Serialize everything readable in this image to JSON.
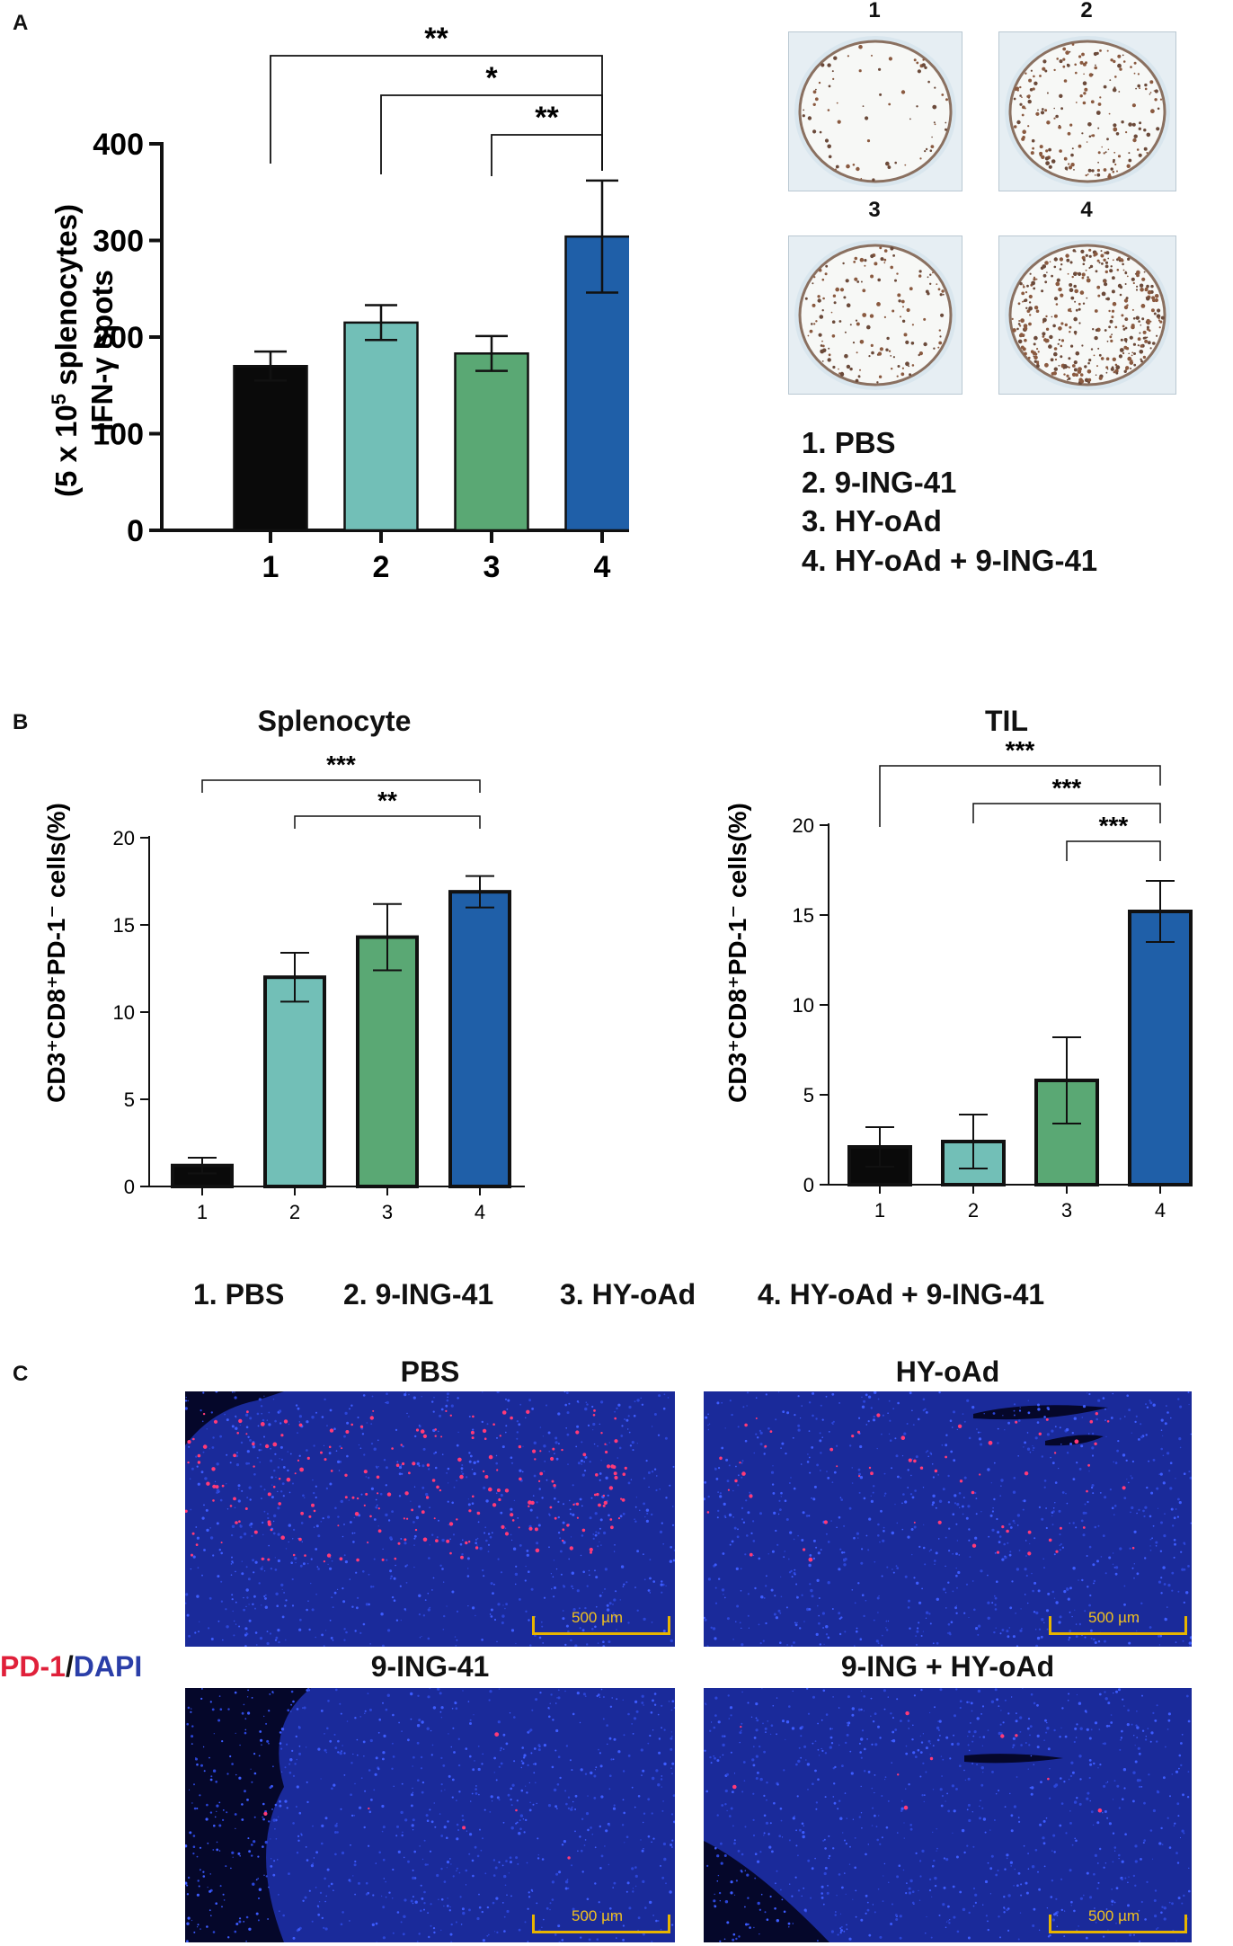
{
  "panel_letters": {
    "a": "A",
    "b": "B",
    "c": "C"
  },
  "panel_a": {
    "wells": [
      {
        "label": "1"
      },
      {
        "label": "2"
      },
      {
        "label": "3"
      },
      {
        "label": "4"
      }
    ],
    "legend": [
      "1. PBS",
      "2. 9-ING-41",
      "3. HY-oAd",
      "4. HY-oAd  + 9-ING-41"
    ]
  },
  "panel_b": {
    "legend": [
      "1. PBS",
      "2. 9-ING-41",
      "3. HY-oAd",
      "4. HY-oAd + 9-ING-41"
    ]
  },
  "panel_c": {
    "titles": [
      "PBS",
      "HY-oAd",
      "9-ING-41",
      "9-ING + HY-oAd"
    ],
    "stain_pd1": "PD-1",
    "stain_sep": "/",
    "stain_dapi": "DAPI",
    "scalebar": "500 µm",
    "stain_colors": {
      "pd1": "#e0203a",
      "dapi": "#2a3ea8"
    }
  },
  "chart_data": [
    {
      "type": "bar",
      "title": "",
      "ylabel_line1": "IFN-γ spots",
      "ylabel_line2_pre": "(5 x 10",
      "ylabel_line2_sup": "5",
      "ylabel_line2_post": " splenocytes)",
      "categories": [
        "1",
        "2",
        "3",
        "4"
      ],
      "values": [
        170,
        215,
        183,
        304
      ],
      "errors": [
        15,
        18,
        18,
        58
      ],
      "colors": [
        "#0a0a0a",
        "#72bfb7",
        "#5aa874",
        "#1f5fa8"
      ],
      "ylim": [
        0,
        400
      ],
      "yticks": [
        0,
        100,
        200,
        300,
        400
      ],
      "significance": [
        {
          "from": 1,
          "to": 4,
          "label": "**"
        },
        {
          "from": 2,
          "to": 4,
          "label": "*"
        },
        {
          "from": 3,
          "to": 4,
          "label": "**"
        }
      ]
    },
    {
      "type": "bar",
      "title": "Splenocyte",
      "ylabel": "CD3⁺CD8⁺PD-1⁻ cells(%)",
      "categories": [
        "1",
        "2",
        "3",
        "4"
      ],
      "values": [
        1.2,
        12.0,
        14.3,
        16.9
      ],
      "errors": [
        0.45,
        1.4,
        1.9,
        0.9
      ],
      "colors": [
        "#0a0a0a",
        "#72bfb7",
        "#5aa874",
        "#1f5fa8"
      ],
      "ylim": [
        0,
        20
      ],
      "yticks": [
        0,
        5,
        10,
        15,
        20
      ],
      "significance": [
        {
          "from": 1,
          "to": 4,
          "label": "***"
        },
        {
          "from": 2,
          "to": 4,
          "label": "**"
        }
      ]
    },
    {
      "type": "bar",
      "title": "TIL",
      "ylabel": "CD3⁺CD8⁺PD-1⁻ cells(%)",
      "categories": [
        "1",
        "2",
        "3",
        "4"
      ],
      "values": [
        2.1,
        2.4,
        5.8,
        15.2
      ],
      "errors": [
        1.1,
        1.5,
        2.4,
        1.7
      ],
      "colors": [
        "#0a0a0a",
        "#72bfb7",
        "#5aa874",
        "#1f5fa8"
      ],
      "ylim": [
        0,
        20
      ],
      "yticks": [
        0,
        5,
        10,
        15,
        20
      ],
      "significance": [
        {
          "from": 1,
          "to": 4,
          "label": "***"
        },
        {
          "from": 2,
          "to": 4,
          "label": "***"
        },
        {
          "from": 3,
          "to": 4,
          "label": "***"
        }
      ]
    }
  ]
}
